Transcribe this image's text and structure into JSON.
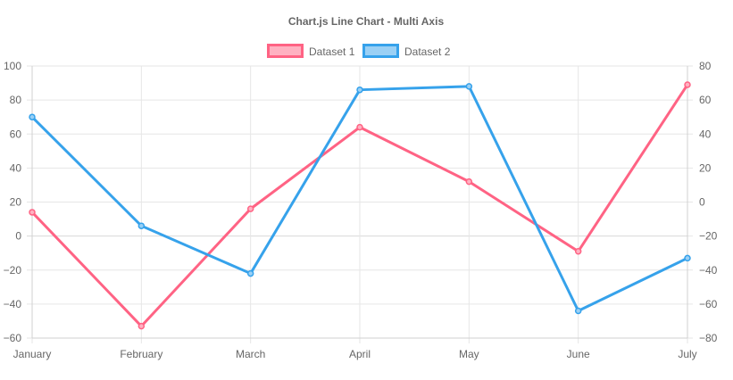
{
  "chart_data": {
    "type": "line",
    "title": "Chart.js Line Chart - Multi Axis",
    "categories": [
      "January",
      "February",
      "March",
      "April",
      "May",
      "June",
      "July"
    ],
    "y_left": {
      "min": -60,
      "max": 100,
      "step": 20,
      "ticks": [
        "100",
        "80",
        "60",
        "40",
        "20",
        "0",
        "−20",
        "−40",
        "−60"
      ]
    },
    "y_right": {
      "min": -80,
      "max": 80,
      "step": 20,
      "ticks": [
        "80",
        "60",
        "40",
        "20",
        "0",
        "−20",
        "−40",
        "−60",
        "−80"
      ]
    },
    "grid": true,
    "legend_position": "top",
    "series": [
      {
        "name": "Dataset 1",
        "axis": "left",
        "color": "#ff6384",
        "fill": "#ffb1c1",
        "values": [
          14,
          -53,
          16,
          64,
          32,
          -9,
          89
        ]
      },
      {
        "name": "Dataset 2",
        "axis": "right",
        "color": "#36a2eb",
        "fill": "#9ad0f5",
        "values": [
          50,
          -14,
          -42,
          66,
          68,
          -64,
          -33
        ]
      }
    ]
  }
}
